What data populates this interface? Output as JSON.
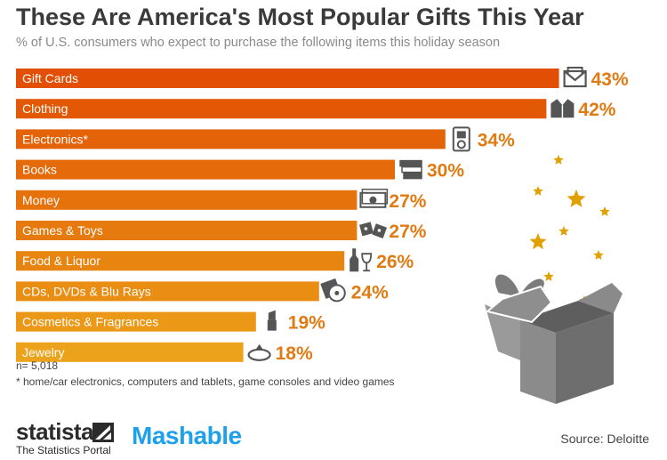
{
  "header": {
    "title": "These Are America's Most Popular Gifts This Year",
    "subtitle": "% of U.S. consumers who expect to purchase the following items this holiday season"
  },
  "chart_data": {
    "type": "bar",
    "orientation": "horizontal",
    "categories": [
      "Gift Cards",
      "Clothing",
      "Electronics*",
      "Books",
      "Money",
      "Games & Toys",
      "Food & Liquor",
      "CDs, DVDs & Blu Rays",
      "Cosmetics & Fragrances",
      "Jewelry"
    ],
    "values": [
      43,
      42,
      34,
      30,
      27,
      27,
      26,
      24,
      19,
      18
    ],
    "value_labels": [
      "43%",
      "42%",
      "34%",
      "30%",
      "27%",
      "27%",
      "26%",
      "24%",
      "19%",
      "18%"
    ],
    "unit": "%",
    "icons": [
      "envelope-icon",
      "jacket-icon",
      "media-player-icon",
      "books-icon",
      "money-icon",
      "dice-icon",
      "wine-bottle-icon",
      "cd-icon",
      "lipstick-icon",
      "ring-icon"
    ],
    "colors": [
      "#e14e04",
      "#e35805",
      "#e46208",
      "#e56a0a",
      "#e6720c",
      "#e77a0e",
      "#e88410",
      "#ea8e13",
      "#eb9816",
      "#eca21a"
    ],
    "value_color": "#e07a12",
    "grid": false
  },
  "notes": {
    "n": "n= 5,018",
    "footnote": "* home/car electronics, computers and tablets, game consoles and video games"
  },
  "footer": {
    "statista_brand": "statista",
    "statista_tagline": "The Statistics Portal",
    "mashable": "Mashable",
    "source": "Source: Deloitte"
  },
  "decor": {
    "illustration": "gift-box-with-stars-icon",
    "star_color": "#e0a000",
    "box_color": "#7a7a7a"
  }
}
